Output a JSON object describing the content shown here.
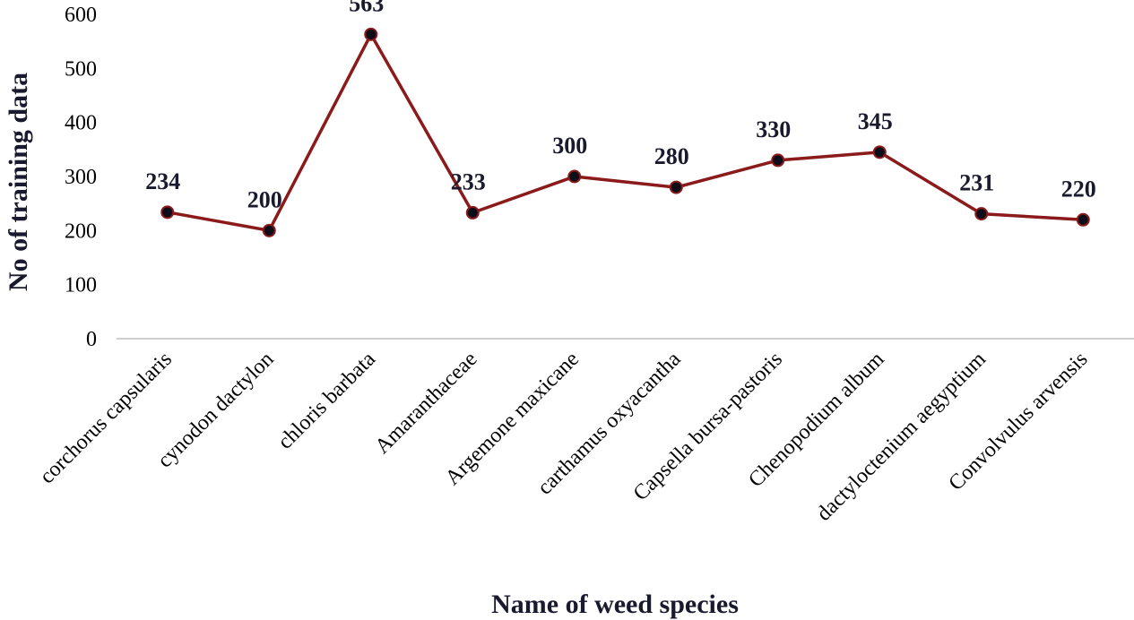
{
  "chart_data": {
    "type": "line",
    "title": "",
    "xlabel": "Name of weed species",
    "ylabel": "No of training data",
    "ylim": [
      0,
      600
    ],
    "yticks": [
      0,
      100,
      200,
      300,
      400,
      500,
      600
    ],
    "grid": false,
    "categories": [
      "corchorus capsularis",
      "cynodon dactylon",
      "chloris barbata",
      "Amaranthaceae",
      "Argemone maxicane",
      "carthamus oxyacantha",
      "Capsella bursa-pastoris",
      "Chenopodium album",
      "dactyloctenium aegyptium",
      "Convolvulus arvensis"
    ],
    "series": [
      {
        "name": "No of training data",
        "values": [
          234,
          200,
          563,
          233,
          300,
          280,
          330,
          345,
          231,
          220
        ],
        "line_color": "#8b1a1a",
        "marker_color": "#0d0d1a"
      }
    ],
    "data_labels": [
      "234",
      "200",
      "563",
      "233",
      "300",
      "280",
      "330",
      "345",
      "231",
      "220"
    ]
  }
}
